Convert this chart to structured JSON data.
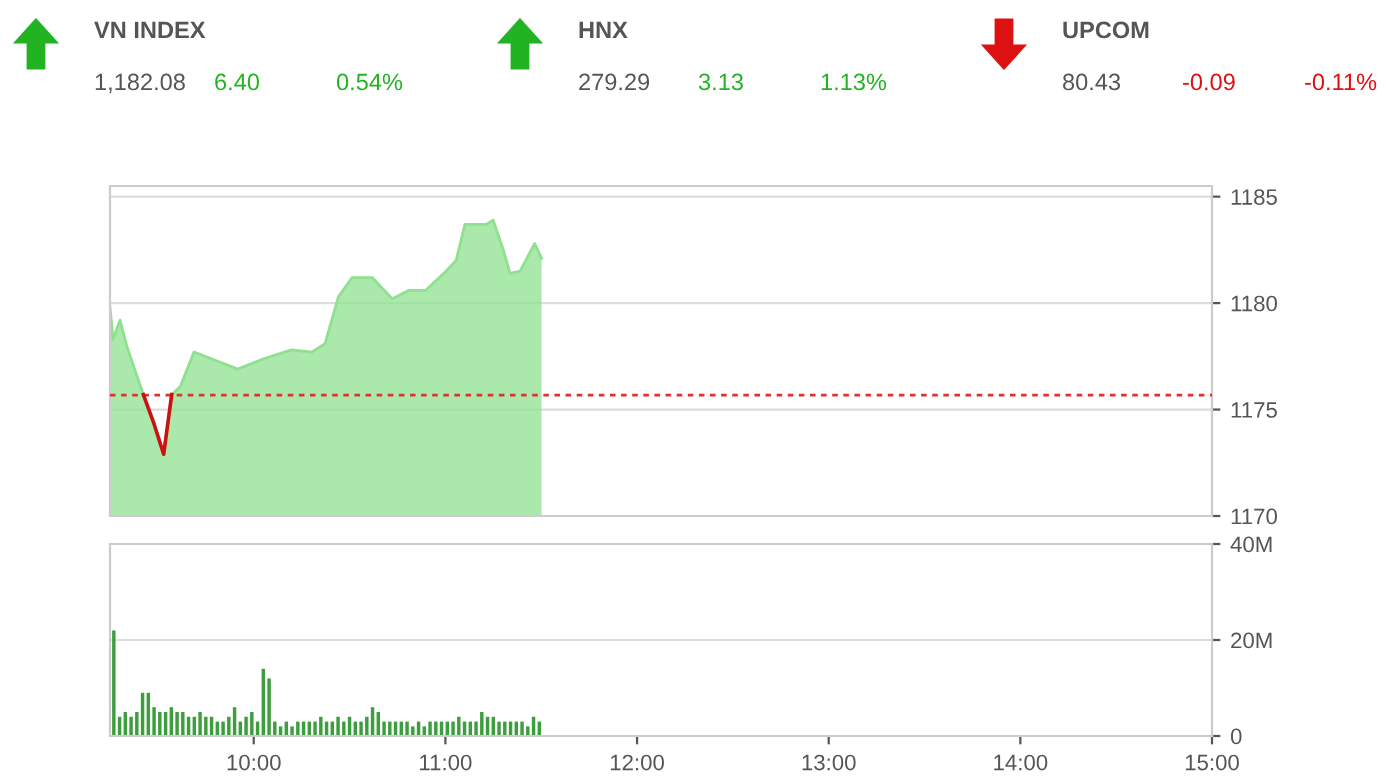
{
  "chart_data": [
    {
      "type": "other",
      "categories": [
        "VN INDEX",
        "HNX",
        "UPCOM"
      ],
      "values": [
        6.4,
        3.13,
        -0.09
      ],
      "value_labels": [
        "6.40",
        "3.13",
        "-0.09"
      ],
      "colors": [
        "#22b322",
        "#22b322",
        "#dd1111"
      ],
      "annotations": [
        "1,182.08",
        "0.54%",
        "279.29",
        "1.13%",
        "80.43",
        "-0.11%"
      ]
    },
    {
      "type": "area",
      "xlim": [
        9.25,
        15
      ],
      "ylim": [
        1170,
        1185.5
      ],
      "yticks": [
        1170,
        1175,
        1180,
        1185
      ],
      "grid": "y",
      "tick_labels": "y",
      "ref_lines": [
        {
          "axis": "y",
          "value": 1175.68,
          "color": "#e03030",
          "line_style": "dotted"
        }
      ],
      "series": [
        {
          "color": "#8fe08f",
          "x": [
            9.25,
            9.266,
            9.302,
            9.337,
            9.424,
            9.477,
            9.53,
            9.572,
            9.618,
            9.688,
            9.776,
            9.916,
            10.056,
            10.197,
            10.302,
            10.372,
            10.442,
            10.513,
            10.618,
            10.723,
            10.81,
            10.898,
            11.003,
            11.056,
            11.102,
            11.214,
            11.249,
            11.302,
            11.337,
            11.39,
            11.466,
            11.502
          ],
          "values": [
            1179.8,
            1178.3,
            1179.2,
            1178.0,
            1175.7,
            1174.4,
            1172.9,
            1175.7,
            1176.1,
            1177.7,
            1177.4,
            1176.9,
            1177.4,
            1177.8,
            1177.7,
            1178.1,
            1180.3,
            1181.2,
            1181.2,
            1180.2,
            1180.6,
            1180.6,
            1181.5,
            1182.0,
            1183.7,
            1183.7,
            1183.9,
            1182.5,
            1181.4,
            1181.5,
            1182.8,
            1182.1
          ]
        },
        {
          "type": "line",
          "color": "#cc1111",
          "x": [
            9.424,
            9.477,
            9.53,
            9.572
          ],
          "values": [
            1175.7,
            1174.4,
            1172.9,
            1175.7
          ]
        }
      ]
    },
    {
      "type": "bar",
      "xlim": [
        9.25,
        15
      ],
      "ylim": [
        0,
        40
      ],
      "yticks": [
        0,
        {
          "value": 20,
          "label": "20M"
        },
        {
          "value": 40,
          "label": "40M"
        }
      ],
      "xticks": [
        {
          "value": 10,
          "label": "10:00"
        },
        {
          "value": 11,
          "label": "11:00"
        },
        {
          "value": 12,
          "label": "12:00"
        },
        {
          "value": 13,
          "label": "13:00"
        },
        {
          "value": 14,
          "label": "14:00"
        },
        {
          "value": 15,
          "label": "15:00"
        }
      ],
      "grid": "y",
      "color": "#3d9e3d",
      "x": [
        9.27,
        9.3,
        9.33,
        9.36,
        9.39,
        9.42,
        9.45,
        9.48,
        9.51,
        9.54,
        9.57,
        9.6,
        9.63,
        9.66,
        9.69,
        9.72,
        9.75,
        9.78,
        9.81,
        9.84,
        9.87,
        9.9,
        9.93,
        9.96,
        9.99,
        10.02,
        10.05,
        10.08,
        10.11,
        10.14,
        10.17,
        10.2,
        10.23,
        10.26,
        10.29,
        10.32,
        10.35,
        10.38,
        10.41,
        10.44,
        10.47,
        10.5,
        10.53,
        10.56,
        10.59,
        10.62,
        10.65,
        10.68,
        10.71,
        10.74,
        10.77,
        10.8,
        10.83,
        10.86,
        10.89,
        10.92,
        10.95,
        10.98,
        11.01,
        11.04,
        11.07,
        11.1,
        11.13,
        11.16,
        11.19,
        11.22,
        11.25,
        11.28,
        11.31,
        11.34,
        11.37,
        11.4,
        11.43,
        11.46,
        11.49
      ],
      "values": [
        22,
        4,
        5,
        4,
        5,
        9,
        9,
        6,
        5,
        5,
        6,
        5,
        5,
        4,
        4,
        5,
        4,
        4,
        3,
        3,
        4,
        6,
        3,
        4,
        5,
        3,
        14,
        12,
        3,
        2,
        3,
        2,
        3,
        3,
        3,
        3,
        4,
        3,
        3,
        4,
        3,
        4,
        3,
        3,
        4,
        6,
        5,
        3,
        3,
        3,
        3,
        3,
        2,
        3,
        2,
        3,
        3,
        3,
        3,
        3,
        4,
        3,
        3,
        3,
        5,
        4,
        4,
        3,
        3,
        3,
        3,
        3,
        2,
        4,
        3
      ]
    }
  ]
}
